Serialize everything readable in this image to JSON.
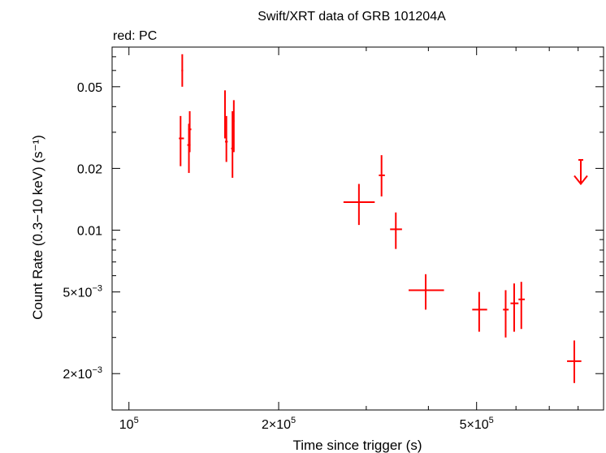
{
  "chart_data": {
    "type": "scatter",
    "title": "Swift/XRT data of GRB 101204A",
    "subtitle": "red: PC",
    "xlabel": "Time since trigger (s)",
    "ylabel": "Count Rate (0.3−10 keV) (s⁻¹)",
    "x_scale": "log",
    "y_scale": "log",
    "xlim": [
      92500,
      900000
    ],
    "ylim": [
      0.00133,
      0.078
    ],
    "grid": false,
    "x_ticks": [
      {
        "value": 100000,
        "mantissa": "10",
        "exponent": "5"
      },
      {
        "value": 200000,
        "mantissa": "2×10",
        "exponent": "5"
      },
      {
        "value": 500000,
        "mantissa": "5×10",
        "exponent": "5"
      }
    ],
    "y_ticks": [
      {
        "value": 0.05,
        "mantissa": "0.05",
        "exponent": ""
      },
      {
        "value": 0.02,
        "mantissa": "0.02",
        "exponent": ""
      },
      {
        "value": 0.01,
        "mantissa": "0.01",
        "exponent": ""
      },
      {
        "value": 0.005,
        "mantissa": "5×10",
        "exponent": "−3"
      },
      {
        "value": 0.002,
        "mantissa": "2×10",
        "exponent": "−3"
      }
    ],
    "series_color": "#ff0000",
    "series": [
      {
        "points": [
          {
            "x": 128000,
            "y": 0.06,
            "xerr": [
              127500,
              128500
            ],
            "yerr": [
              0.05,
              0.072
            ]
          },
          {
            "x": 127000,
            "y": 0.028,
            "xerr": [
              126000,
              129000
            ],
            "yerr": [
              0.0205,
              0.036
            ]
          },
          {
            "x": 132500,
            "y": 0.031,
            "xerr": [
              131500,
              133500
            ],
            "yerr": [
              0.024,
              0.038
            ]
          },
          {
            "x": 132000,
            "y": 0.026,
            "xerr": [
              131000,
              133000
            ],
            "yerr": [
              0.019,
              0.033
            ]
          },
          {
            "x": 156000,
            "y": 0.037,
            "xerr": [
              155500,
              156500
            ],
            "yerr": [
              0.028,
              0.048
            ]
          },
          {
            "x": 157000,
            "y": 0.027,
            "xerr": [
              156000,
              158000
            ],
            "yerr": [
              0.0215,
              0.036
            ]
          },
          {
            "x": 162500,
            "y": 0.034,
            "xerr": [
              162000,
              163000
            ],
            "yerr": [
              0.024,
              0.043
            ]
          },
          {
            "x": 161500,
            "y": 0.025,
            "xerr": [
              160500,
              162500
            ],
            "yerr": [
              0.018,
              0.038
            ]
          },
          {
            "x": 290000,
            "y": 0.0137,
            "xerr": [
              270000,
              312000
            ],
            "yerr": [
              0.0106,
              0.0168
            ]
          },
          {
            "x": 322000,
            "y": 0.0185,
            "xerr": [
              318000,
              327000
            ],
            "yerr": [
              0.0146,
              0.0232
            ]
          },
          {
            "x": 344000,
            "y": 0.0101,
            "xerr": [
              335000,
              354000
            ],
            "yerr": [
              0.0081,
              0.0122
            ]
          },
          {
            "x": 395000,
            "y": 0.0051,
            "xerr": [
              365000,
              430000
            ],
            "yerr": [
              0.0041,
              0.0061
            ]
          },
          {
            "x": 506000,
            "y": 0.0041,
            "xerr": [
              490000,
              525000
            ],
            "yerr": [
              0.0032,
              0.005
            ]
          },
          {
            "x": 572000,
            "y": 0.0041,
            "xerr": [
              565000,
              580000
            ],
            "yerr": [
              0.003,
              0.0051
            ]
          },
          {
            "x": 595000,
            "y": 0.0044,
            "xerr": [
              585000,
              607000
            ],
            "yerr": [
              0.0032,
              0.0055
            ]
          },
          {
            "x": 615000,
            "y": 0.0046,
            "xerr": [
              607000,
              625000
            ],
            "yerr": [
              0.0033,
              0.0056
            ]
          },
          {
            "x": 786000,
            "y": 0.0023,
            "xerr": [
              760000,
              812000
            ],
            "yerr": [
              0.0018,
              0.0029
            ]
          }
        ],
        "upper_limits": [
          {
            "x": 810000,
            "y": 0.022,
            "arrow_to": 0.0168
          }
        ]
      }
    ]
  }
}
